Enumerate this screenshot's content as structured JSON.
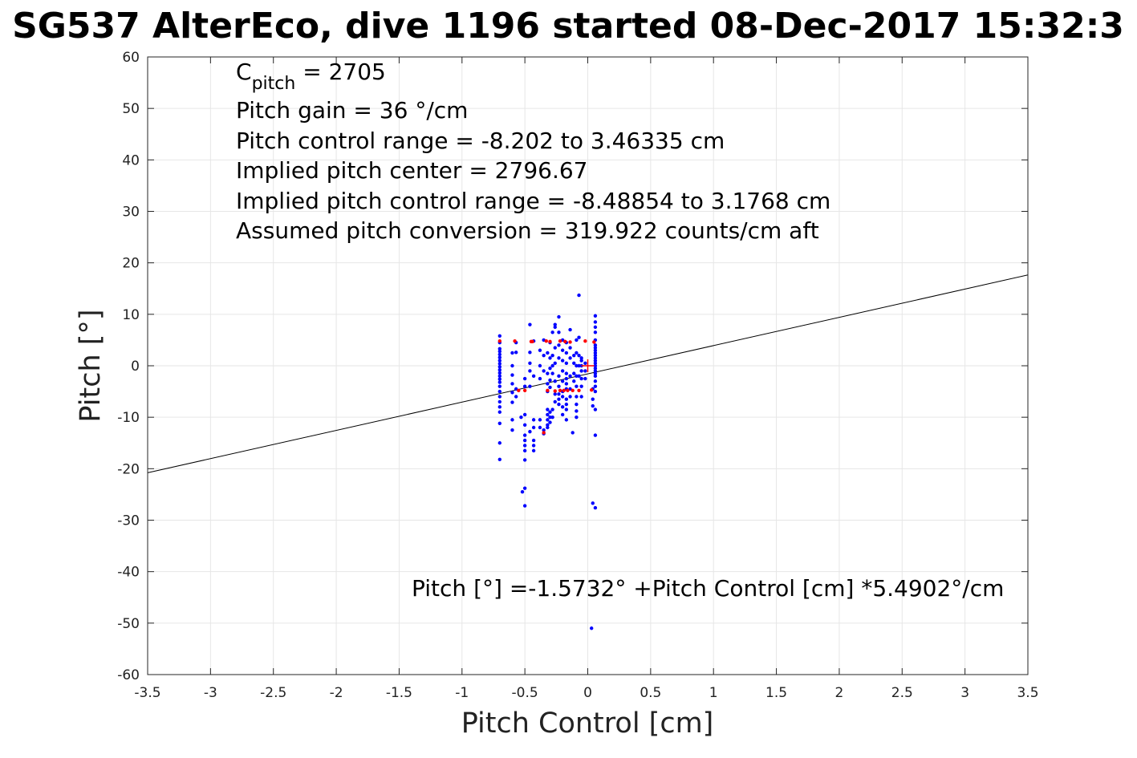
{
  "chart_data": {
    "type": "scatter",
    "title": "SG537 AlterEco, dive 1196 started 08-Dec-2017 15:32:3",
    "xlabel": "Pitch Control [cm]",
    "ylabel": "Pitch [°]",
    "xlim": [
      -3.5,
      3.5
    ],
    "ylim": [
      -60,
      60
    ],
    "xticks": [
      "-3.5",
      "-3",
      "-2.5",
      "-2",
      "-1.5",
      "-1",
      "-0.5",
      "0",
      "0.5",
      "1",
      "1.5",
      "2",
      "2.5",
      "3",
      "3.5"
    ],
    "yticks": [
      "-60",
      "-50",
      "-40",
      "-30",
      "-20",
      "-10",
      "0",
      "10",
      "20",
      "30",
      "40",
      "50",
      "60"
    ],
    "grid": true,
    "colors": {
      "blue_points": "#0000ff",
      "red_points": "#ff0000",
      "fit_line": "#000000",
      "center_marker": "#ff0000"
    },
    "annotations": {
      "c_pitch_main": "C",
      "c_pitch_sub": "pitch",
      "c_pitch_value": " = 2705",
      "pitch_gain": "Pitch gain = 36 °/cm",
      "control_range": "Pitch control range = -8.202 to 3.46335 cm",
      "implied_center": "Implied pitch center = 2796.67",
      "implied_range": "Implied pitch control range = -8.48854 to 3.1768 cm",
      "conversion": "Assumed pitch conversion = 319.922 counts/cm aft",
      "fit_equation": "Pitch [°] =-1.5732° +Pitch Control [cm] *5.4902°/cm"
    },
    "fit": {
      "intercept": -1.5732,
      "slope": 5.4902
    },
    "center_marker": {
      "x": 0.0,
      "y": 0.0
    },
    "series": [
      {
        "color": "blue",
        "points": [
          [
            -0.7,
            5.8
          ],
          [
            -0.7,
            4.5
          ],
          [
            -0.7,
            3.3
          ],
          [
            -0.7,
            2.8
          ],
          [
            -0.7,
            2.2
          ],
          [
            -0.7,
            1.6
          ],
          [
            -0.7,
            1.0
          ],
          [
            -0.7,
            0.4
          ],
          [
            -0.7,
            -0.2
          ],
          [
            -0.7,
            -0.8
          ],
          [
            -0.7,
            -1.4
          ],
          [
            -0.7,
            -2.0
          ],
          [
            -0.7,
            -2.6
          ],
          [
            -0.7,
            -3.2
          ],
          [
            -0.7,
            -4.0
          ],
          [
            -0.7,
            -5.0
          ],
          [
            -0.7,
            -6.0
          ],
          [
            -0.7,
            -7.0
          ],
          [
            -0.7,
            -8.0
          ],
          [
            -0.7,
            -9.0
          ],
          [
            -0.7,
            -11.2
          ],
          [
            -0.7,
            -15.0
          ],
          [
            -0.7,
            -18.2
          ],
          [
            -0.6,
            2.5
          ],
          [
            -0.6,
            0.0
          ],
          [
            -0.6,
            -1.8
          ],
          [
            -0.6,
            -3.5
          ],
          [
            -0.6,
            -5.2
          ],
          [
            -0.6,
            -7.1
          ],
          [
            -0.6,
            -10.5
          ],
          [
            -0.6,
            -12.5
          ],
          [
            -0.57,
            4.5
          ],
          [
            -0.57,
            2.6
          ],
          [
            -0.57,
            -4.5
          ],
          [
            -0.57,
            -6.0
          ],
          [
            -0.53,
            -10.0
          ],
          [
            -0.52,
            -24.5
          ],
          [
            -0.5,
            -23.8
          ],
          [
            -0.5,
            -27.2
          ],
          [
            -0.5,
            -9.5
          ],
          [
            -0.5,
            -11.5
          ],
          [
            -0.5,
            -13.5
          ],
          [
            -0.5,
            -14.5
          ],
          [
            -0.5,
            -15.5
          ],
          [
            -0.5,
            -16.5
          ],
          [
            -0.5,
            -18.3
          ],
          [
            -0.5,
            -4.0
          ],
          [
            -0.5,
            -2.5
          ],
          [
            -0.46,
            8.0
          ],
          [
            -0.46,
            2.6
          ],
          [
            -0.46,
            0.5
          ],
          [
            -0.46,
            -1.0
          ],
          [
            -0.46,
            -4.0
          ],
          [
            -0.46,
            -12.8
          ],
          [
            -0.43,
            -10.5
          ],
          [
            -0.43,
            -12.0
          ],
          [
            -0.43,
            -14.5
          ],
          [
            -0.43,
            -15.5
          ],
          [
            -0.43,
            -16.5
          ],
          [
            -0.43,
            -2.0
          ],
          [
            -0.43,
            4.8
          ],
          [
            -0.38,
            -10.5
          ],
          [
            -0.38,
            -12.0
          ],
          [
            -0.38,
            0.0
          ],
          [
            -0.38,
            -2.5
          ],
          [
            -0.38,
            3.0
          ],
          [
            -0.35,
            -12.5
          ],
          [
            -0.35,
            -13.2
          ],
          [
            -0.35,
            5.0
          ],
          [
            -0.35,
            2.0
          ],
          [
            -0.35,
            -1.0
          ],
          [
            -0.32,
            -8.5
          ],
          [
            -0.32,
            -9.5
          ],
          [
            -0.32,
            -10.5
          ],
          [
            -0.32,
            -11.5
          ],
          [
            -0.32,
            -12.0
          ],
          [
            -0.32,
            2.5
          ],
          [
            -0.32,
            -1.5
          ],
          [
            -0.32,
            -3.5
          ],
          [
            -0.32,
            -5.0
          ],
          [
            -0.3,
            -9.0
          ],
          [
            -0.3,
            -10.0
          ],
          [
            -0.3,
            -11.0
          ],
          [
            -0.3,
            4.5
          ],
          [
            -0.3,
            1.5
          ],
          [
            -0.3,
            -0.5
          ],
          [
            -0.3,
            -2.8
          ],
          [
            -0.3,
            -4.2
          ],
          [
            -0.28,
            -8.5
          ],
          [
            -0.28,
            -10.0
          ],
          [
            -0.28,
            6.5
          ],
          [
            -0.28,
            2.0
          ],
          [
            -0.28,
            0.0
          ],
          [
            -0.28,
            -1.5
          ],
          [
            -0.26,
            8.0
          ],
          [
            -0.26,
            7.5
          ],
          [
            -0.26,
            3.5
          ],
          [
            -0.26,
            0.5
          ],
          [
            -0.26,
            -3.0
          ],
          [
            -0.26,
            -5.5
          ],
          [
            -0.26,
            -7.0
          ],
          [
            -0.23,
            9.5
          ],
          [
            -0.23,
            6.5
          ],
          [
            -0.23,
            4.0
          ],
          [
            -0.23,
            1.5
          ],
          [
            -0.23,
            -2.0
          ],
          [
            -0.23,
            -4.0
          ],
          [
            -0.23,
            -5.5
          ],
          [
            -0.23,
            -6.5
          ],
          [
            -0.23,
            -7.5
          ],
          [
            -0.2,
            5.0
          ],
          [
            -0.2,
            3.0
          ],
          [
            -0.2,
            1.0
          ],
          [
            -0.2,
            -1.0
          ],
          [
            -0.2,
            -3.0
          ],
          [
            -0.2,
            -5.0
          ],
          [
            -0.2,
            -6.0
          ],
          [
            -0.2,
            -8.0
          ],
          [
            -0.2,
            -9.5
          ],
          [
            -0.17,
            4.5
          ],
          [
            -0.17,
            2.5
          ],
          [
            -0.17,
            0.5
          ],
          [
            -0.17,
            -1.5
          ],
          [
            -0.17,
            -2.5
          ],
          [
            -0.17,
            -3.5
          ],
          [
            -0.17,
            -4.5
          ],
          [
            -0.17,
            -6.5
          ],
          [
            -0.17,
            -7.5
          ],
          [
            -0.17,
            -8.5
          ],
          [
            -0.17,
            -10.5
          ],
          [
            -0.14,
            7.0
          ],
          [
            -0.14,
            3.5
          ],
          [
            -0.14,
            1.5
          ],
          [
            -0.14,
            -2.0
          ],
          [
            -0.14,
            -4.5
          ],
          [
            -0.14,
            -6.0
          ],
          [
            -0.12,
            -13.0
          ],
          [
            -0.11,
            2.0
          ],
          [
            -0.11,
            0.5
          ],
          [
            -0.11,
            -1.5
          ],
          [
            -0.11,
            -3.0
          ],
          [
            -0.09,
            5.0
          ],
          [
            -0.09,
            2.5
          ],
          [
            -0.09,
            0.0
          ],
          [
            -0.09,
            -2.0
          ],
          [
            -0.09,
            -4.0
          ],
          [
            -0.09,
            -6.0
          ],
          [
            -0.09,
            -7.5
          ],
          [
            -0.09,
            -8.8
          ],
          [
            -0.09,
            -10.0
          ],
          [
            -0.07,
            13.7
          ],
          [
            -0.07,
            5.5
          ],
          [
            -0.07,
            2.0
          ],
          [
            -0.07,
            0.0
          ],
          [
            -0.07,
            -2.0
          ],
          [
            -0.05,
            1.5
          ],
          [
            -0.05,
            1.0
          ],
          [
            -0.05,
            0.0
          ],
          [
            -0.05,
            -1.0
          ],
          [
            -0.05,
            -2.5
          ],
          [
            -0.05,
            -4.0
          ],
          [
            -0.05,
            -6.0
          ],
          [
            -0.02,
            0.5
          ],
          [
            -0.02,
            -1.0
          ],
          [
            -0.02,
            -2.5
          ],
          [
            0.03,
            -51.0
          ],
          [
            0.04,
            -26.7
          ],
          [
            0.04,
            -6.5
          ],
          [
            0.04,
            -7.8
          ],
          [
            0.04,
            -4.5
          ],
          [
            0.06,
            9.7
          ],
          [
            0.06,
            8.5
          ],
          [
            0.06,
            7.5
          ],
          [
            0.06,
            6.5
          ],
          [
            0.06,
            5.0
          ],
          [
            0.06,
            4.0
          ],
          [
            0.06,
            3.5
          ],
          [
            0.06,
            3.0
          ],
          [
            0.06,
            2.5
          ],
          [
            0.06,
            2.0
          ],
          [
            0.06,
            1.5
          ],
          [
            0.06,
            1.0
          ],
          [
            0.06,
            0.5
          ],
          [
            0.06,
            0.0
          ],
          [
            0.06,
            -0.5
          ],
          [
            0.06,
            -1.0
          ],
          [
            0.06,
            -1.5
          ],
          [
            0.06,
            -2.0
          ],
          [
            0.06,
            -3.0
          ],
          [
            0.06,
            -4.0
          ],
          [
            0.06,
            -5.0
          ],
          [
            0.06,
            -8.5
          ],
          [
            0.06,
            -13.5
          ],
          [
            0.06,
            -27.6
          ]
        ]
      },
      {
        "color": "red",
        "points": [
          [
            -0.7,
            4.8
          ],
          [
            -0.58,
            4.8
          ],
          [
            -0.45,
            4.7
          ],
          [
            -0.44,
            4.7
          ],
          [
            -0.33,
            4.8
          ],
          [
            -0.3,
            4.7
          ],
          [
            -0.22,
            4.8
          ],
          [
            -0.18,
            4.7
          ],
          [
            -0.14,
            4.6
          ],
          [
            -0.02,
            4.8
          ],
          [
            0.05,
            4.6
          ],
          [
            -0.55,
            -4.8
          ],
          [
            -0.5,
            -4.8
          ],
          [
            -0.32,
            -4.8
          ],
          [
            -0.26,
            -4.9
          ],
          [
            -0.22,
            -4.8
          ],
          [
            -0.19,
            -4.8
          ],
          [
            -0.16,
            -4.8
          ],
          [
            -0.12,
            -4.8
          ],
          [
            -0.07,
            -4.8
          ],
          [
            0.03,
            -4.7
          ],
          [
            -0.35,
            -13.0
          ]
        ]
      }
    ]
  }
}
